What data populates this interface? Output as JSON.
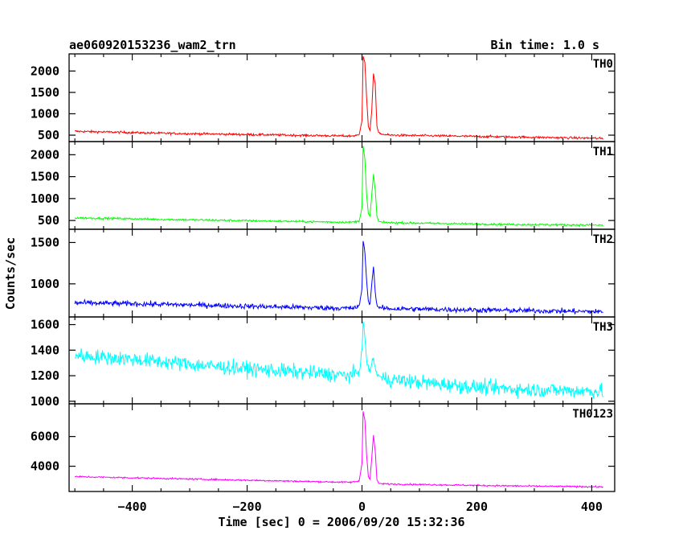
{
  "chart_data": {
    "type": "line",
    "title": "ae060920153236_wam2_trn",
    "subtitle": "Bin time: 1.0 s",
    "xlabel": "Time [sec] 0 = 2006/09/20 15:32:36",
    "ylabel": "Counts/sec",
    "xlim": [
      -510,
      440
    ],
    "x_ticks": [
      -400,
      -200,
      0,
      200,
      400
    ],
    "x_tick_labels": [
      "−400",
      "−200",
      "0",
      "200",
      "400"
    ],
    "grid": false,
    "series": [
      {
        "name": "TH0",
        "color": "#ff0000",
        "ylim": [
          350,
          2400
        ],
        "y_ticks": [
          500,
          1000,
          1500,
          2000
        ],
        "x": [
          -500,
          -450,
          -400,
          -350,
          -300,
          -250,
          -200,
          -150,
          -100,
          -50,
          -20,
          -5,
          0,
          2,
          5,
          8,
          11,
          14,
          17,
          20,
          23,
          26,
          29,
          35,
          50,
          100,
          150,
          200,
          250,
          300,
          350,
          400,
          420
        ],
        "values": [
          590,
          575,
          560,
          545,
          535,
          525,
          515,
          505,
          495,
          485,
          480,
          500,
          850,
          2350,
          2200,
          1400,
          700,
          600,
          1100,
          1950,
          1700,
          700,
          560,
          520,
          500,
          490,
          480,
          470,
          460,
          450,
          440,
          430,
          420
        ],
        "noise": 25
      },
      {
        "name": "TH1",
        "color": "#00ff00",
        "ylim": [
          300,
          2300
        ],
        "y_ticks": [
          500,
          1000,
          1500,
          2000
        ],
        "x": [
          -500,
          -450,
          -400,
          -350,
          -300,
          -250,
          -200,
          -150,
          -100,
          -50,
          -20,
          -5,
          0,
          2,
          5,
          8,
          11,
          14,
          17,
          20,
          23,
          26,
          29,
          35,
          50,
          100,
          150,
          200,
          250,
          300,
          350,
          400,
          420
        ],
        "values": [
          560,
          550,
          540,
          525,
          515,
          505,
          495,
          485,
          475,
          465,
          460,
          480,
          800,
          2200,
          1900,
          1100,
          650,
          600,
          1100,
          1550,
          1200,
          600,
          480,
          460,
          450,
          440,
          430,
          420,
          410,
          405,
          400,
          395,
          390
        ],
        "noise": 22
      },
      {
        "name": "TH2",
        "color": "#0000ff",
        "ylim": [
          600,
          1660
        ],
        "y_ticks": [
          1000,
          1500
        ],
        "x": [
          -500,
          -450,
          -400,
          -350,
          -300,
          -250,
          -200,
          -150,
          -100,
          -50,
          -20,
          -5,
          0,
          2,
          5,
          8,
          11,
          14,
          17,
          20,
          23,
          26,
          29,
          35,
          50,
          100,
          150,
          200,
          250,
          300,
          350,
          400,
          420
        ],
        "values": [
          770,
          765,
          760,
          752,
          745,
          738,
          730,
          722,
          715,
          708,
          705,
          720,
          950,
          1520,
          1380,
          1050,
          780,
          760,
          1000,
          1220,
          900,
          740,
          715,
          705,
          700,
          695,
          690,
          685,
          680,
          675,
          670,
          665,
          662
        ],
        "noise": 30
      },
      {
        "name": "TH3",
        "color": "#00ffff",
        "ylim": [
          980,
          1660
        ],
        "y_ticks": [
          1000,
          1200,
          1400,
          1600
        ],
        "x": [
          -500,
          -450,
          -400,
          -350,
          -300,
          -250,
          -200,
          -150,
          -100,
          -50,
          -20,
          -5,
          0,
          2,
          5,
          8,
          11,
          14,
          17,
          20,
          25,
          35,
          50,
          100,
          150,
          200,
          250,
          300,
          350,
          400,
          420
        ],
        "values": [
          1360,
          1345,
          1330,
          1310,
          1290,
          1270,
          1255,
          1240,
          1225,
          1210,
          1200,
          1230,
          1400,
          1620,
          1500,
          1330,
          1250,
          1240,
          1300,
          1330,
          1220,
          1180,
          1170,
          1150,
          1130,
          1110,
          1100,
          1090,
          1085,
          1080,
          1075
        ],
        "noise": 55
      },
      {
        "name": "TH0123",
        "color": "#ff00ff",
        "ylim": [
          2300,
          8200
        ],
        "y_ticks": [
          4000,
          6000
        ],
        "x": [
          -500,
          -450,
          -400,
          -350,
          -300,
          -250,
          -200,
          -150,
          -100,
          -50,
          -20,
          -5,
          0,
          2,
          5,
          8,
          11,
          14,
          17,
          20,
          23,
          26,
          29,
          35,
          50,
          100,
          150,
          200,
          250,
          300,
          350,
          400,
          420
        ],
        "values": [
          3300,
          3260,
          3220,
          3180,
          3140,
          3100,
          3060,
          3020,
          2980,
          2940,
          2920,
          3000,
          4200,
          7700,
          7100,
          4800,
          3300,
          3100,
          4600,
          6100,
          5000,
          3100,
          2850,
          2820,
          2800,
          2770,
          2740,
          2710,
          2680,
          2660,
          2640,
          2620,
          2600
        ],
        "noise": 50
      }
    ]
  }
}
